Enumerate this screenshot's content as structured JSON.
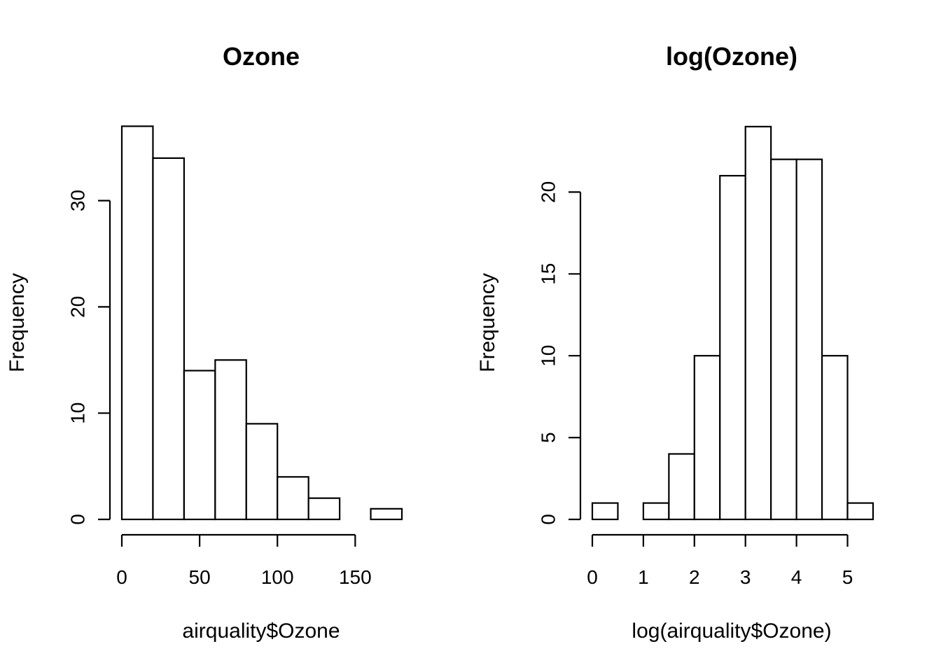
{
  "chart_data": [
    {
      "type": "bar",
      "subtype": "histogram",
      "title": "Ozone",
      "xlabel": "airquality$Ozone",
      "ylabel": "Frequency",
      "bins": [
        {
          "x0": 0,
          "x1": 20,
          "count": 37
        },
        {
          "x0": 20,
          "x1": 40,
          "count": 34
        },
        {
          "x0": 40,
          "x1": 60,
          "count": 14
        },
        {
          "x0": 60,
          "x1": 80,
          "count": 15
        },
        {
          "x0": 80,
          "x1": 100,
          "count": 9
        },
        {
          "x0": 100,
          "x1": 120,
          "count": 4
        },
        {
          "x0": 120,
          "x1": 140,
          "count": 2
        },
        {
          "x0": 140,
          "x1": 160,
          "count": 0
        },
        {
          "x0": 160,
          "x1": 180,
          "count": 1
        }
      ],
      "xlim": [
        0,
        180
      ],
      "ylim": [
        0,
        37
      ],
      "x_ticks": [
        0,
        50,
        100,
        150
      ],
      "y_ticks": [
        0,
        10,
        20,
        30
      ],
      "grid": false,
      "bar_fill": "#ffffff",
      "bar_stroke": "#000000"
    },
    {
      "type": "bar",
      "subtype": "histogram",
      "title": "log(Ozone)",
      "xlabel": "log(airquality$Ozone)",
      "ylabel": "Frequency",
      "bins": [
        {
          "x0": 0,
          "x1": 0.5,
          "count": 1
        },
        {
          "x0": 0.5,
          "x1": 1,
          "count": 0
        },
        {
          "x0": 1,
          "x1": 1.5,
          "count": 1
        },
        {
          "x0": 1.5,
          "x1": 2,
          "count": 4
        },
        {
          "x0": 2,
          "x1": 2.5,
          "count": 10
        },
        {
          "x0": 2.5,
          "x1": 3,
          "count": 21
        },
        {
          "x0": 3,
          "x1": 3.5,
          "count": 24
        },
        {
          "x0": 3.5,
          "x1": 4,
          "count": 22
        },
        {
          "x0": 4,
          "x1": 4.5,
          "count": 22
        },
        {
          "x0": 4.5,
          "x1": 5,
          "count": 10
        },
        {
          "x0": 5,
          "x1": 5.5,
          "count": 1
        }
      ],
      "xlim": [
        0,
        5.5
      ],
      "ylim": [
        0,
        24
      ],
      "x_ticks": [
        0,
        1,
        2,
        3,
        4,
        5
      ],
      "y_ticks": [
        0,
        5,
        10,
        15,
        20
      ],
      "grid": false,
      "bar_fill": "#ffffff",
      "bar_stroke": "#000000"
    }
  ]
}
